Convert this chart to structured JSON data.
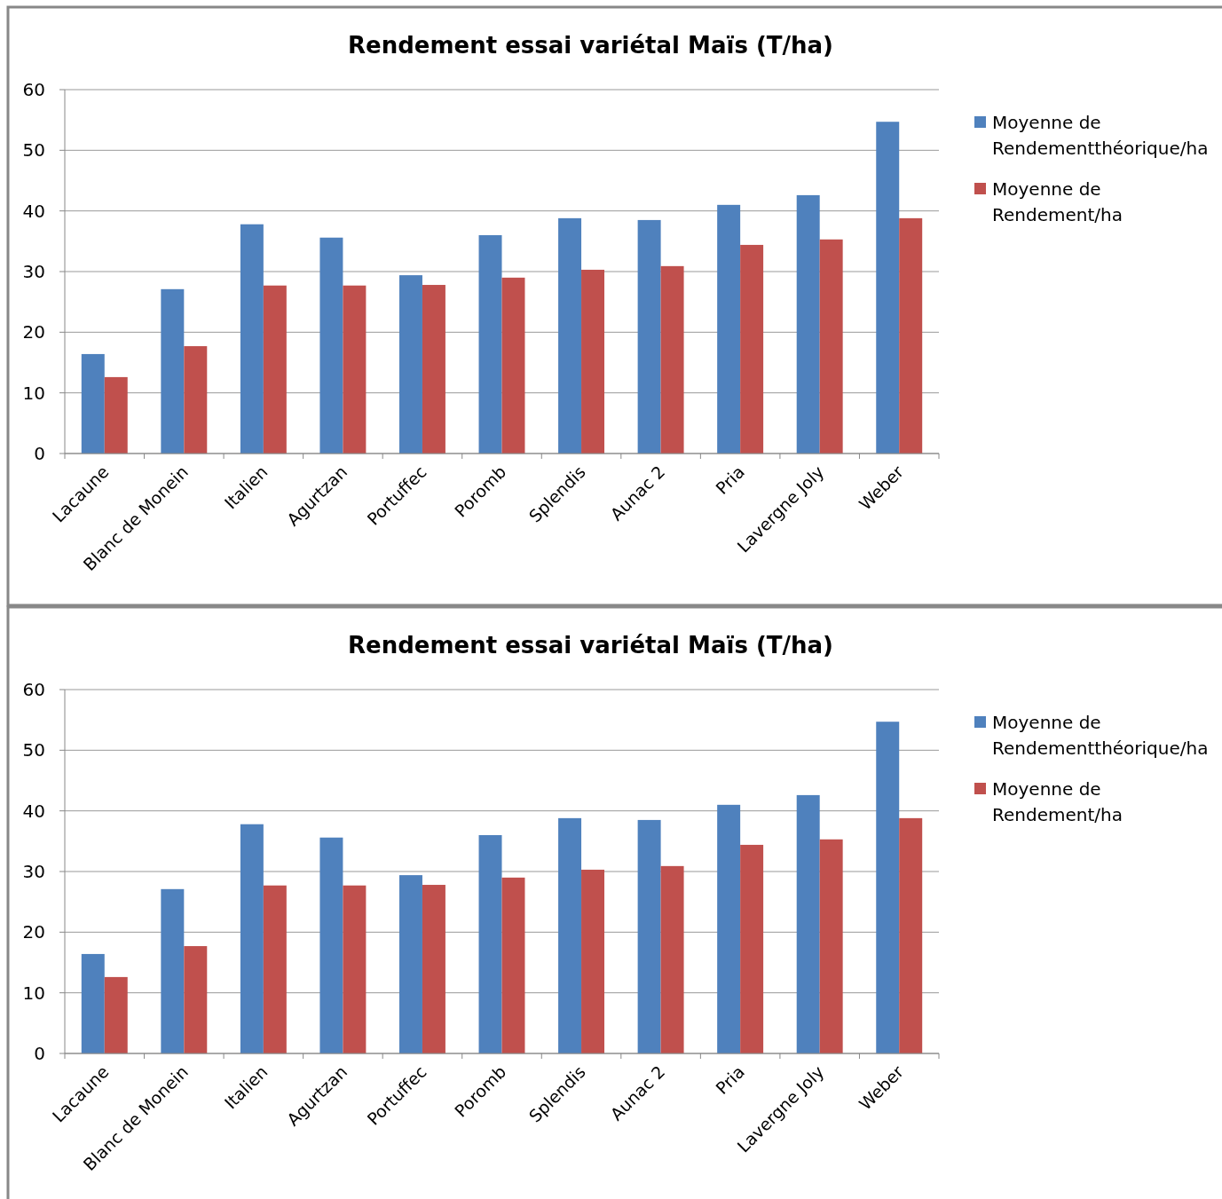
{
  "chart_data": [
    {
      "type": "bar",
      "title": "Rendement essai variétal Maïs (T/ha)",
      "categories": [
        "Lacaune",
        "Blanc de Monein",
        "Italien",
        "Agurtzan",
        "Portuffec",
        "Poromb",
        "Splendis",
        "Aunac 2",
        "Pria",
        "Lavergne Joly",
        "Weber"
      ],
      "series": [
        {
          "name": "Moyenne de Rendementthéorique/ha",
          "color": "#4f81bd",
          "values": [
            16.4,
            27.1,
            37.8,
            35.6,
            29.4,
            36.0,
            38.8,
            38.5,
            41.0,
            42.6,
            54.7
          ]
        },
        {
          "name": "Moyenne de Rendement/ha",
          "color": "#c0504d",
          "values": [
            12.6,
            17.7,
            27.7,
            27.7,
            27.8,
            29.0,
            30.3,
            30.9,
            34.4,
            35.3,
            38.8
          ]
        }
      ],
      "ylim": [
        0,
        60
      ],
      "yticks": [
        0,
        10,
        20,
        30,
        40,
        50,
        60
      ],
      "grid": "y",
      "legend": "right"
    },
    {
      "type": "bar",
      "title": "Rendement essai variétal Maïs (T/ha)",
      "categories": [
        "Lacaune",
        "Blanc de Monein",
        "Italien",
        "Agurtzan",
        "Portuffec",
        "Poromb",
        "Splendis",
        "Aunac 2",
        "Pria",
        "Lavergne Joly",
        "Weber"
      ],
      "series": [
        {
          "name": "Moyenne de Rendementthéorique/ha",
          "color": "#4f81bd",
          "values": [
            16.4,
            27.1,
            37.8,
            35.6,
            29.4,
            36.0,
            38.8,
            38.5,
            41.0,
            42.6,
            54.7
          ]
        },
        {
          "name": "Moyenne de Rendement/ha",
          "color": "#c0504d",
          "values": [
            12.6,
            17.7,
            27.7,
            27.7,
            27.8,
            29.0,
            30.3,
            30.9,
            34.4,
            35.3,
            38.8
          ]
        }
      ],
      "ylim": [
        0,
        60
      ],
      "yticks": [
        0,
        10,
        20,
        30,
        40,
        50,
        60
      ],
      "grid": "y",
      "legend": "right"
    }
  ]
}
